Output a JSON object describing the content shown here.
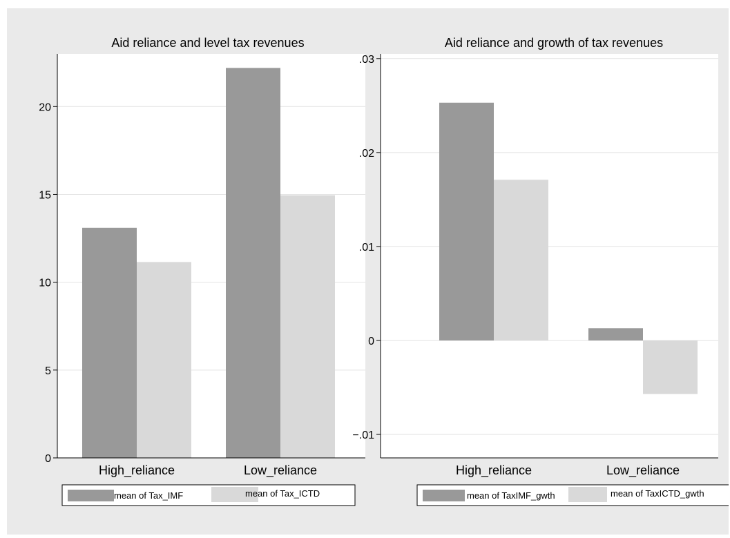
{
  "chart_data": [
    {
      "type": "bar",
      "title": "Aid reliance and level tax  revenues",
      "categories": [
        "High_reliance",
        "Low_reliance"
      ],
      "series": [
        {
          "name": "mean of Tax_IMF",
          "values": [
            13.1,
            22.2
          ]
        },
        {
          "name": "mean of Tax_ICTD",
          "values": [
            11.15,
            14.95
          ]
        }
      ],
      "ylim": [
        0,
        23
      ],
      "yticks": [
        0,
        5,
        10,
        15,
        20
      ],
      "ytick_labels": [
        "0",
        "5",
        "10",
        "15",
        "20"
      ],
      "grid": true,
      "legend": "bottom"
    },
    {
      "type": "bar",
      "title": "Aid reliance and growth of tax revenues",
      "categories": [
        "High_reliance",
        "Low_reliance"
      ],
      "series": [
        {
          "name": "mean of TaxIMF_gwth",
          "values": [
            0.0253,
            0.0013
          ]
        },
        {
          "name": "mean of TaxICTD_gwth",
          "values": [
            0.0171,
            -0.0057
          ]
        }
      ],
      "ylim": [
        -0.0125,
        0.0305
      ],
      "yticks": [
        -0.01,
        0,
        0.01,
        0.02,
        0.03
      ],
      "ytick_labels": [
        "−.01",
        "0",
        ".01",
        ".02",
        ".03"
      ],
      "grid": true,
      "legend": "bottom"
    }
  ],
  "colors": {
    "series_1": "#999999",
    "series_2": "#d9d9d9",
    "figure_background": "#eaeaea",
    "plot_background": "#ffffff"
  }
}
